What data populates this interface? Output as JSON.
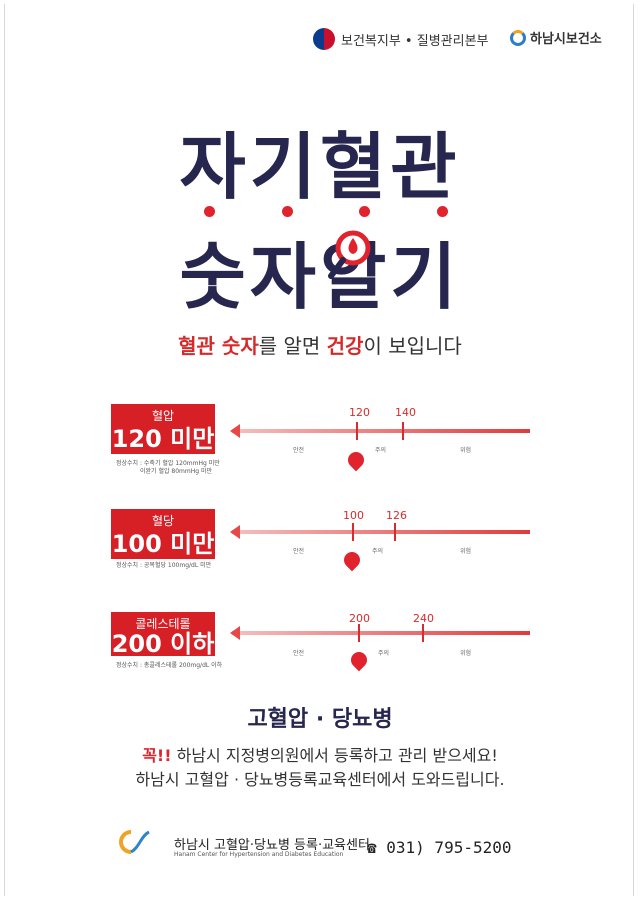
{
  "header": {
    "mohw_label": "보건복지부 • 질병관리본부",
    "hanam_label": "하남시보건소"
  },
  "title": {
    "line1": "자기혈관",
    "line2": "숫자알기"
  },
  "subtitle": {
    "part1": "혈관 숫자",
    "part2": "를 알면 ",
    "part3": "건강",
    "part4": "이 보입니다"
  },
  "indicators": [
    {
      "label": "혈압",
      "value": "120 미만",
      "note_line1": "정상수치 : 수축기 혈압 120mmHg 미만",
      "note_line2": "이완기 혈압 80mmHg 미만",
      "tick1": "120",
      "tick2": "140",
      "zone1": "안전",
      "zone2": "주의",
      "zone3": "위험"
    },
    {
      "label": "혈당",
      "value": "100 미만",
      "note_line1": "정상수치 : 공복혈당 100mg/dL 미만",
      "note_line2": "",
      "tick1": "100",
      "tick2": "126",
      "zone1": "안전",
      "zone2": "주의",
      "zone3": "위험"
    },
    {
      "label": "콜레스테롤",
      "value": "200 이하",
      "note_line1": "정상수치 : 총콜레스테롤 200mg/dL 이하",
      "note_line2": "",
      "tick1": "200",
      "tick2": "240",
      "zone1": "안전",
      "zone2": "주의",
      "zone3": "위험"
    }
  ],
  "section": {
    "title": "고혈압 · 당뇨병"
  },
  "message": {
    "must": "꼭!!",
    "line1": " 하남시 지정병의원에서 등록하고 관리 받으세요!",
    "line2": "하남시 고혈압 · 당뇨병등록교육센터에서 도와드립니다."
  },
  "footer": {
    "name": "하남시 고혈압·당뇨병 등록·교육센터",
    "english": "Hanam Center for Hypertension and Diabetes Education",
    "phone": "☎ 031) 795-5200"
  },
  "colors": {
    "accent_red": "#d71f26",
    "navy": "#26264e"
  }
}
